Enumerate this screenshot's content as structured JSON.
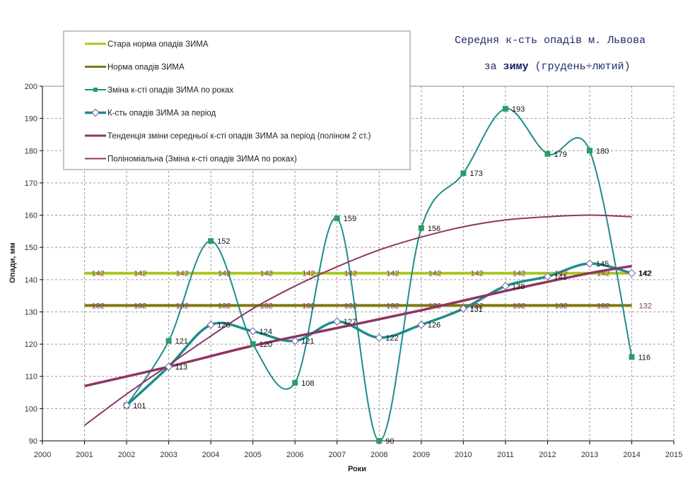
{
  "chart_data": {
    "type": "line",
    "title_line1": "Середня к-сть опадів м. Львова",
    "title_line2_prefix": "за ",
    "title_line2_bold": "зиму",
    "title_line2_suffix": " (грудень÷лютий)",
    "xlabel": "Роки",
    "ylabel": "Опади, мм",
    "xlim": [
      2000,
      2015
    ],
    "ylim": [
      90,
      200
    ],
    "x_ticks": [
      "2000",
      "2001",
      "2002",
      "2003",
      "2004",
      "2005",
      "2006",
      "2007",
      "2008",
      "2009",
      "2010",
      "2011",
      "2012",
      "2013",
      "2014",
      "2015"
    ],
    "y_ticks": [
      "90",
      "100",
      "110",
      "120",
      "130",
      "140",
      "150",
      "160",
      "170",
      "180",
      "190",
      "200"
    ],
    "grid": true,
    "legend_position": "top-left",
    "years": [
      2001,
      2002,
      2003,
      2004,
      2005,
      2006,
      2007,
      2008,
      2009,
      2010,
      2011,
      2012,
      2013,
      2014
    ],
    "series": [
      {
        "name": "Стара норма опадів ЗИМА",
        "color": "#a8c81c",
        "style": "flat",
        "values": [
          142,
          142,
          142,
          142,
          142,
          142,
          142,
          142,
          142,
          142,
          142,
          142,
          142,
          142
        ],
        "labels": [
          "142",
          "142",
          "142",
          "142",
          "142",
          "142",
          "142",
          "142",
          "142",
          "142",
          "142",
          "142",
          "142",
          "142"
        ]
      },
      {
        "name": "Норма опадів ЗИМА",
        "color": "#7f7a10",
        "style": "flat",
        "values": [
          132,
          132,
          132,
          132,
          132,
          132,
          132,
          132,
          132,
          132,
          132,
          132,
          132,
          132
        ],
        "labels": [
          "132",
          "132",
          "132",
          "132",
          "132",
          "132",
          "132",
          "132",
          "132",
          "132",
          "132",
          "132",
          "132",
          "132"
        ]
      },
      {
        "name": "Зміна к-сті опадів ЗИМА по роках",
        "color": "#1e8c8c",
        "marker_color": "#2e9a6a",
        "marker": "square",
        "style": "smooth",
        "years": [
          2002,
          2003,
          2004,
          2005,
          2006,
          2007,
          2008,
          2009,
          2010,
          2011,
          2012,
          2013,
          2014
        ],
        "values": [
          101,
          121,
          152,
          120,
          108,
          159,
          90,
          156,
          173,
          193,
          179,
          180,
          116
        ],
        "labels": [
          "",
          "121",
          "152",
          "120",
          "108",
          "159",
          "90",
          "156",
          "173",
          "193",
          "179",
          "180",
          "116"
        ]
      },
      {
        "name": "К-сть опадів ЗИМА за період",
        "color": "#1e8c8c",
        "marker": "diamond",
        "style": "smooth-thick",
        "years": [
          2002,
          2003,
          2004,
          2005,
          2006,
          2007,
          2008,
          2009,
          2010,
          2011,
          2012,
          2013,
          2014
        ],
        "values": [
          101,
          113,
          126,
          124,
          121,
          127,
          122,
          126,
          131,
          138,
          141,
          145,
          142
        ],
        "labels": [
          "101",
          "113",
          "126",
          "124",
          "121",
          "127",
          "122",
          "126",
          "131",
          "138",
          "141",
          "145",
          "142"
        ]
      },
      {
        "name": "Тенденція зміни середньої к-сті опадів ЗИМА за період (поліном 2 ст.)",
        "color": "#8e3563",
        "style": "trend-thick",
        "years": [
          2001,
          2003,
          2005,
          2007,
          2009,
          2011,
          2013,
          2014
        ],
        "values": [
          107,
          113,
          119.5,
          125,
          130.5,
          136.5,
          142,
          144.2
        ]
      },
      {
        "name": "Поліноміальна (Зміна к-сті опадів ЗИМА по роках)",
        "color": "#8e3563",
        "style": "trend-thin",
        "years": [
          2001,
          2002,
          2003,
          2004,
          2005,
          2006,
          2007,
          2008,
          2009,
          2010,
          2011,
          2012,
          2013,
          2014
        ],
        "values": [
          94.8,
          104.5,
          113.5,
          122.5,
          131,
          138,
          144,
          149.2,
          153.2,
          156.4,
          158.5,
          159.5,
          160,
          159.5
        ]
      }
    ],
    "extra_labels": [
      {
        "year": 2014,
        "value": 132,
        "text": "132",
        "series": "Норма опадів ЗИМА"
      },
      {
        "year": 2014,
        "value": 142,
        "text": "142",
        "series": "Стара норма опадів ЗИМА"
      }
    ]
  }
}
